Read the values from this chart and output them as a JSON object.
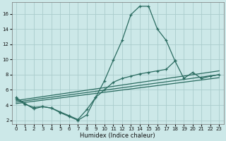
{
  "xlabel": "Humidex (Indice chaleur)",
  "bg_color": "#cce8e8",
  "grid_color": "#aacccc",
  "line_color": "#2a6b60",
  "xlim": [
    -0.5,
    23.5
  ],
  "ylim": [
    1.5,
    17.5
  ],
  "xticks": [
    0,
    1,
    2,
    3,
    4,
    5,
    6,
    7,
    8,
    9,
    10,
    11,
    12,
    13,
    14,
    15,
    16,
    17,
    18,
    19,
    20,
    21,
    22,
    23
  ],
  "yticks": [
    2,
    4,
    6,
    8,
    10,
    12,
    14,
    16
  ],
  "curve1_x": [
    0,
    1,
    2,
    3,
    4,
    5,
    6,
    7,
    8,
    9,
    10,
    11,
    12,
    13,
    14,
    15,
    16,
    17,
    18
  ],
  "curve1_y": [
    5.0,
    4.2,
    3.5,
    3.8,
    3.6,
    3.0,
    2.5,
    2.0,
    2.7,
    5.0,
    7.2,
    9.9,
    12.5,
    15.9,
    17.0,
    17.0,
    14.0,
    12.5,
    9.8
  ],
  "curve2_x": [
    0,
    1,
    2,
    3,
    4,
    5,
    6,
    7,
    8,
    9,
    10,
    11,
    12,
    13,
    14,
    15,
    16,
    17,
    18,
    19,
    20,
    21,
    22,
    23
  ],
  "curve2_y": [
    4.8,
    4.1,
    3.7,
    3.8,
    3.6,
    3.1,
    2.6,
    2.1,
    3.4,
    5.0,
    6.0,
    7.0,
    7.5,
    7.8,
    8.1,
    8.3,
    8.5,
    8.7,
    9.8,
    7.5,
    8.3,
    7.5,
    7.8,
    8.0
  ],
  "line3_x": [
    0,
    23
  ],
  "line3_y": [
    4.6,
    8.5
  ],
  "line4_x": [
    0,
    23
  ],
  "line4_y": [
    4.4,
    8.0
  ],
  "line5_x": [
    0,
    23
  ],
  "line5_y": [
    4.2,
    7.6
  ]
}
